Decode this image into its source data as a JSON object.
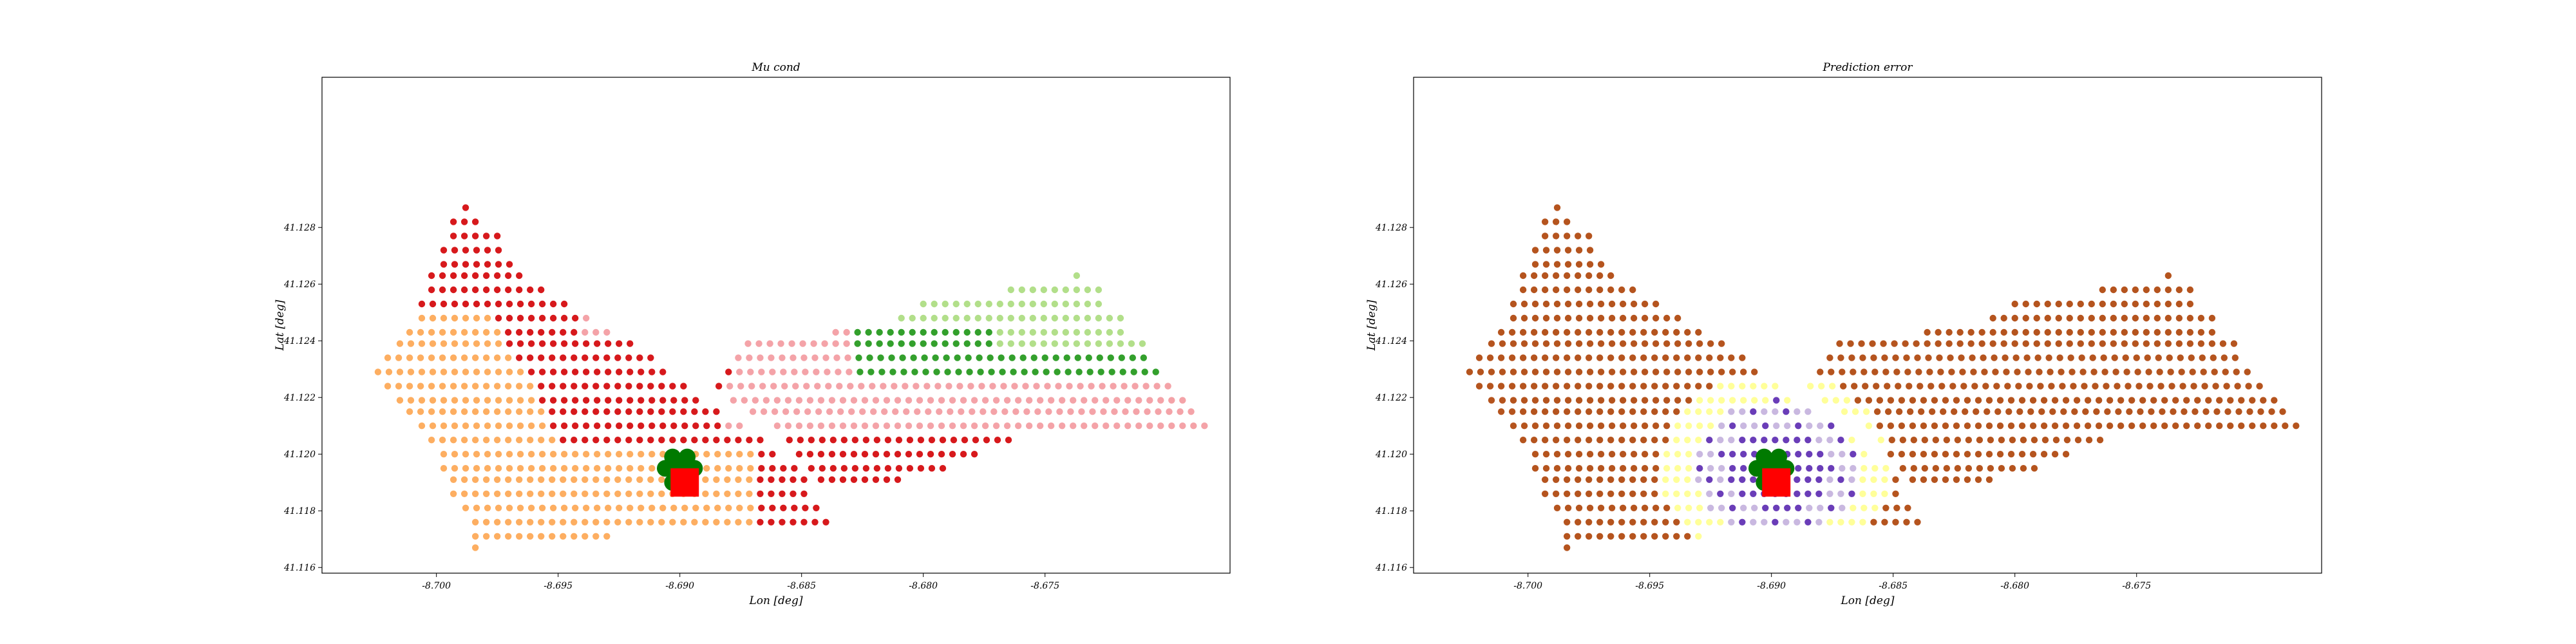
{
  "chart_data": [
    {
      "type": "scatter",
      "title": "Mu cond",
      "xlabel": "Lon [deg]",
      "ylabel": "Lat [deg]",
      "xlim": [
        -8.7047,
        -8.6674
      ],
      "ylim": [
        41.1158,
        41.1333
      ],
      "xticks": [
        "-8.700",
        "-8.695",
        "-8.690",
        "-8.685",
        "-8.680",
        "-8.675"
      ],
      "xtick_values": [
        -8.7,
        -8.695,
        -8.69,
        -8.685,
        -8.68,
        -8.675
      ],
      "yticks": [
        "41.116",
        "41.118",
        "41.120",
        "41.122",
        "41.124",
        "41.126",
        "41.128"
      ],
      "ytick_values": [
        41.116,
        41.118,
        41.12,
        41.122,
        41.124,
        41.126,
        41.128
      ],
      "grid": {
        "lon_step": 0.00045,
        "lat_step": 0.00048,
        "rows": [
          {
            "lat": 41.1287,
            "lon_from": -8.6988,
            "lon_to": -8.6984
          },
          {
            "lat": 41.1282,
            "lon_from": -8.6993,
            "lon_to": -8.698
          },
          {
            "lat": 41.1277,
            "lon_from": -8.6993,
            "lon_to": -8.6975
          },
          {
            "lat": 41.1272,
            "lon_from": -8.6997,
            "lon_to": -8.6971
          },
          {
            "lat": 41.1267,
            "lon_from": -8.6997,
            "lon_to": -8.6966
          },
          {
            "lat": 41.1263,
            "lon_from": -8.7002,
            "lon_to": -8.6962
          },
          {
            "lat": 41.1258,
            "lon_from": -8.7002,
            "lon_to": -8.6953
          },
          {
            "lat": 41.1253,
            "lon_from": -8.7006,
            "lon_to": -8.6944
          },
          {
            "lat": 41.1248,
            "lon_from": -8.7006,
            "lon_to": -8.6935
          },
          {
            "lat": 41.1243,
            "lon_from": -8.7011,
            "lon_to": -8.6926
          },
          {
            "lat": 41.1239,
            "lon_from": -8.7015,
            "lon_to": -8.6917
          },
          {
            "lat": 41.1234,
            "lon_from": -8.702,
            "lon_to": -8.6908
          },
          {
            "lat": 41.1229,
            "lon_from": -8.7024,
            "lon_to": -8.6904
          },
          {
            "lat": 41.1224,
            "lon_from": -8.702,
            "lon_to": -8.6895
          },
          {
            "lat": 41.1219,
            "lon_from": -8.7015,
            "lon_to": -8.6891
          },
          {
            "lat": 41.1215,
            "lon_from": -8.7011,
            "lon_to": -8.6882
          },
          {
            "lat": 41.121,
            "lon_from": -8.7006,
            "lon_to": -8.6873
          },
          {
            "lat": 41.1205,
            "lon_from": -8.7002,
            "lon_to": -8.6864
          },
          {
            "lat": 41.12,
            "lon_from": -8.6997,
            "lon_to": -8.686
          },
          {
            "lat": 41.1195,
            "lon_from": -8.6997,
            "lon_to": -8.6851
          },
          {
            "lat": 41.1191,
            "lon_from": -8.6993,
            "lon_to": -8.6846
          },
          {
            "lat": 41.1186,
            "lon_from": -8.6993,
            "lon_to": -8.6846
          },
          {
            "lat": 41.1181,
            "lon_from": -8.6988,
            "lon_to": -8.6842
          },
          {
            "lat": 41.1176,
            "lon_from": -8.6984,
            "lon_to": -8.6837
          },
          {
            "lat": 41.1171,
            "lon_from": -8.6984,
            "lon_to": -8.6926
          },
          {
            "lat": 41.1167,
            "lon_from": -8.6984,
            "lon_to": -8.698
          }
        ],
        "rows_east": [
          {
            "lat": 41.1263,
            "lon_from": -8.6737,
            "lon_to": -8.6737
          },
          {
            "lat": 41.1258,
            "lon_from": -8.6764,
            "lon_to": -8.6728
          },
          {
            "lat": 41.1253,
            "lon_from": -8.68,
            "lon_to": -8.6724
          },
          {
            "lat": 41.1248,
            "lon_from": -8.6809,
            "lon_to": -8.6719
          },
          {
            "lat": 41.1243,
            "lon_from": -8.6836,
            "lon_to": -8.6715
          },
          {
            "lat": 41.1239,
            "lon_from": -8.6872,
            "lon_to": -8.671
          },
          {
            "lat": 41.1234,
            "lon_from": -8.6876,
            "lon_to": -8.6706
          },
          {
            "lat": 41.1229,
            "lon_from": -8.688,
            "lon_to": -8.6701
          },
          {
            "lat": 41.1224,
            "lon_from": -8.6884,
            "lon_to": -8.6697
          },
          {
            "lat": 41.1219,
            "lon_from": -8.6878,
            "lon_to": -8.6692
          },
          {
            "lat": 41.1215,
            "lon_from": -8.687,
            "lon_to": -8.6688
          },
          {
            "lat": 41.121,
            "lon_from": -8.686,
            "lon_to": -8.6683
          },
          {
            "lat": 41.1205,
            "lon_from": -8.6855,
            "lon_to": -8.6762
          },
          {
            "lat": 41.12,
            "lon_from": -8.6851,
            "lon_to": -8.6775
          },
          {
            "lat": 41.1195,
            "lon_from": -8.6846,
            "lon_to": -8.679
          },
          {
            "lat": 41.1191,
            "lon_from": -8.6842,
            "lon_to": -8.6808
          }
        ]
      },
      "series": [
        {
          "values_hint": "categorical color classes by region",
          "color": "#d7191c"
        },
        {
          "color": "#fdae61"
        },
        {
          "color": "#f4a3a8"
        },
        {
          "color": "#33a02c"
        },
        {
          "color": "#b2df8a"
        }
      ],
      "markers": {
        "circles": [
          {
            "lon": -8.6903,
            "lat": 41.1199
          },
          {
            "lon": -8.6897,
            "lat": 41.1199
          },
          {
            "lon": -8.6906,
            "lat": 41.1195
          },
          {
            "lon": -8.69,
            "lat": 41.1195
          },
          {
            "lon": -8.6894,
            "lat": 41.1195
          },
          {
            "lon": -8.6903,
            "lat": 41.119
          }
        ],
        "circle_color": "#007a00",
        "square": {
          "lon": -8.6898,
          "lat": 41.119
        },
        "square_color": "#ff0000"
      }
    },
    {
      "type": "scatter",
      "title": "Prediction error",
      "xlabel": "Lon [deg]",
      "ylabel": "Lat [deg]",
      "xlim": [
        -8.7047,
        -8.6674
      ],
      "ylim": [
        41.1158,
        41.1333
      ],
      "xticks": [
        "-8.700",
        "-8.695",
        "-8.690",
        "-8.685",
        "-8.680",
        "-8.675"
      ],
      "xtick_values": [
        -8.7,
        -8.695,
        -8.69,
        -8.685,
        -8.68,
        -8.675
      ],
      "yticks": [
        "41.116",
        "41.118",
        "41.120",
        "41.122",
        "41.124",
        "41.126",
        "41.128"
      ],
      "ytick_values": [
        41.116,
        41.118,
        41.12,
        41.122,
        41.124,
        41.126,
        41.128
      ],
      "base_color": "#b5541e",
      "near_colors": [
        "#ffff99",
        "#c9b8e0",
        "#6a3db8"
      ],
      "markers": {
        "circles": [
          {
            "lon": -8.6903,
            "lat": 41.1199
          },
          {
            "lon": -8.6897,
            "lat": 41.1199
          },
          {
            "lon": -8.6906,
            "lat": 41.1195
          },
          {
            "lon": -8.69,
            "lat": 41.1195
          },
          {
            "lon": -8.6894,
            "lat": 41.1195
          },
          {
            "lon": -8.6903,
            "lat": 41.119
          }
        ],
        "circle_color": "#007a00",
        "square": {
          "lon": -8.6898,
          "lat": 41.119
        },
        "square_color": "#ff0000"
      }
    }
  ]
}
